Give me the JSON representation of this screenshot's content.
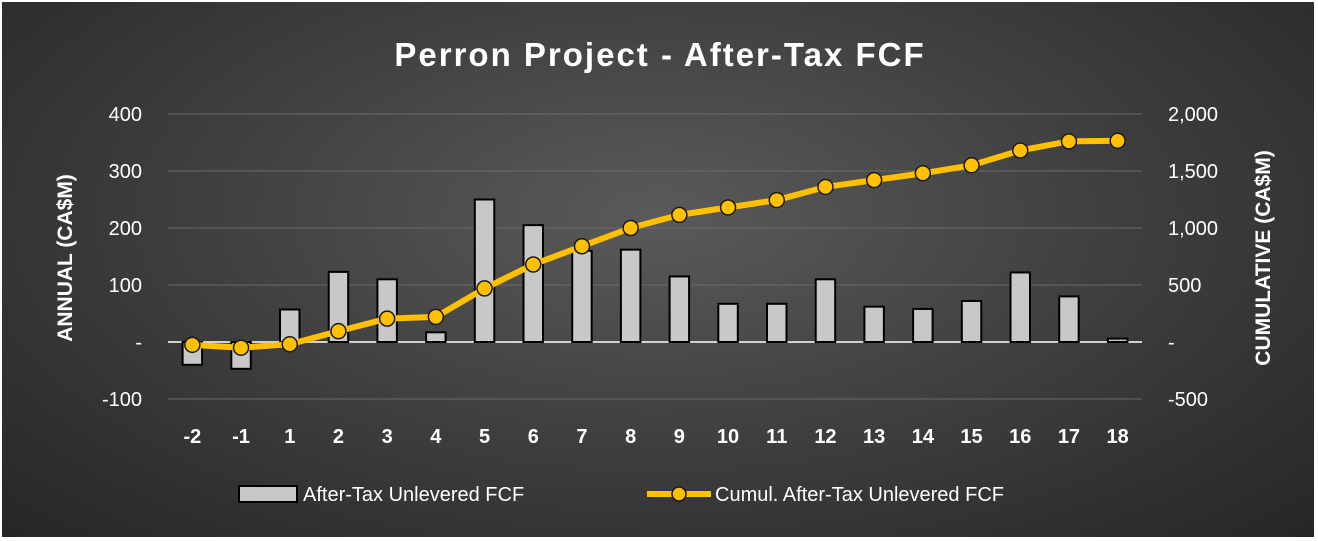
{
  "chart_data": {
    "type": "bar",
    "title": "Perron Project - After-Tax FCF",
    "categories": [
      "-2",
      "-1",
      "1",
      "2",
      "3",
      "4",
      "5",
      "6",
      "7",
      "8",
      "9",
      "10",
      "11",
      "12",
      "13",
      "14",
      "15",
      "16",
      "17",
      "18"
    ],
    "ylabel": "ANNUAL (CA$M)",
    "y2label": "CUMULATIVE (CA$M)",
    "ylim": [
      -100,
      400
    ],
    "y2lim": [
      -500,
      2000
    ],
    "yticks": [
      "400",
      "300",
      "200",
      "100",
      "-",
      "-100"
    ],
    "y2ticks": [
      "2,000",
      "1,500",
      "1,000",
      "500",
      "-",
      "-500"
    ],
    "grid": true,
    "legend_position": "bottom",
    "series": [
      {
        "name": "After-Tax Unlevered FCF",
        "type": "bar",
        "axis": "left",
        "color": "#c8c8c8",
        "values": [
          -40,
          -47,
          57,
          123,
          110,
          17,
          250,
          205,
          160,
          162,
          115,
          67,
          67,
          110,
          62,
          58,
          72,
          122,
          80,
          6
        ]
      },
      {
        "name": "Cumul. After-Tax Unlevered FCF",
        "type": "line",
        "axis": "right",
        "color": "#ffc000",
        "values": [
          -25,
          -50,
          -20,
          95,
          205,
          220,
          470,
          680,
          840,
          1000,
          1115,
          1180,
          1245,
          1360,
          1420,
          1480,
          1550,
          1680,
          1760,
          1765
        ]
      }
    ]
  }
}
